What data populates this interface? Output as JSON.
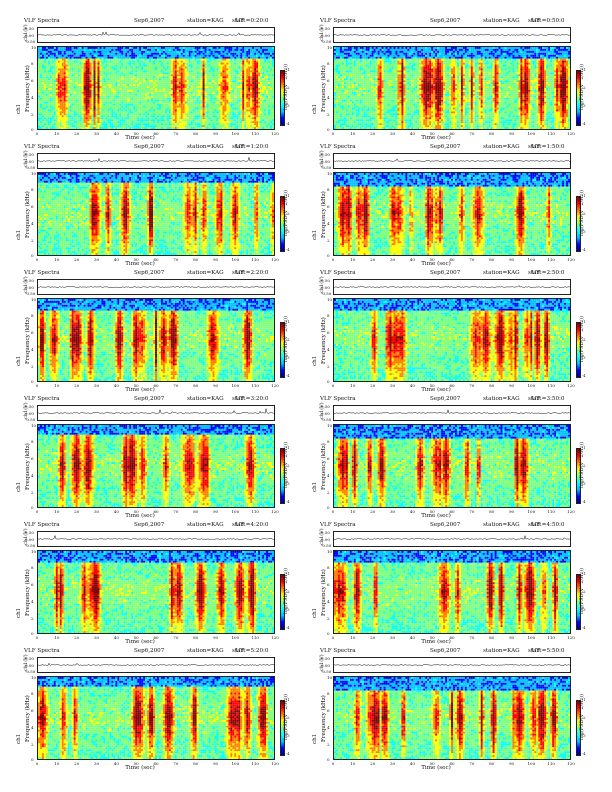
{
  "header": {
    "title": "VLF Spectra",
    "date": "Sep6,2007",
    "station": "station=KAG",
    "start": "start"
  },
  "labels": {
    "ts_label": "ch1(V)",
    "freq_label": "Frequency (kHz)",
    "ch_label": "ch1",
    "x_label": "Time (sec)",
    "cbar_label": "log(PSD(V^2/Hz))"
  },
  "ts_ticks": [
    "0.50",
    "0.00",
    "-0.50"
  ],
  "freq_ticks": [
    "10",
    "8",
    "6",
    "4",
    "2",
    "0"
  ],
  "time_ticks": [
    "0",
    "10",
    "20",
    "30",
    "40",
    "50",
    "60",
    "70",
    "80",
    "90",
    "100",
    "110",
    "120"
  ],
  "cbar_ticks": [
    "-1",
    "-2",
    "-3",
    "-4"
  ],
  "colormap": [
    "#00008b",
    "#0000ff",
    "#00bfff",
    "#00ffff",
    "#7fff7f",
    "#ffff00",
    "#ff8000",
    "#ff0000",
    "#800000"
  ],
  "panels": [
    {
      "ut": "UT =0:20:0"
    },
    {
      "ut": "UT =0:50:0"
    },
    {
      "ut": "UT =1:20:0"
    },
    {
      "ut": "UT =1:50:0"
    },
    {
      "ut": "UT =2:20:0"
    },
    {
      "ut": "UT =2:50:0"
    },
    {
      "ut": "UT =3:20:0"
    },
    {
      "ut": "UT =3:50:0"
    },
    {
      "ut": "UT =4:20:0"
    },
    {
      "ut": "UT =4:50:0"
    },
    {
      "ut": "UT =5:20:0"
    },
    {
      "ut": "UT =5:50:0"
    }
  ],
  "chart_data": {
    "type": "heatmap",
    "description_of_axes": "12 spectrogram panels, each with a ch1 voltage time series above",
    "x_axis": {
      "label": "Time (sec)",
      "range": [
        0,
        120
      ]
    },
    "y_axis": {
      "label": "Frequency (kHz)",
      "range": [
        0,
        10
      ]
    },
    "ts_axis": {
      "label": "ch1(V)",
      "range": [
        -0.5,
        0.5
      ]
    },
    "colorbar": {
      "label": "log(PSD(V^2/Hz))",
      "ticks": [
        -1,
        -2,
        -3,
        -4
      ]
    },
    "panels": [
      {
        "start_ut": "0:20:0",
        "date": "Sep6,2007",
        "station": "KAG"
      },
      {
        "start_ut": "0:50:0",
        "date": "Sep6,2007",
        "station": "KAG"
      },
      {
        "start_ut": "1:20:0",
        "date": "Sep6,2007",
        "station": "KAG"
      },
      {
        "start_ut": "1:50:0",
        "date": "Sep6,2007",
        "station": "KAG"
      },
      {
        "start_ut": "2:20:0",
        "date": "Sep6,2007",
        "station": "KAG"
      },
      {
        "start_ut": "2:50:0",
        "date": "Sep6,2007",
        "station": "KAG"
      },
      {
        "start_ut": "3:20:0",
        "date": "Sep6,2007",
        "station": "KAG"
      },
      {
        "start_ut": "3:50:0",
        "date": "Sep6,2007",
        "station": "KAG"
      },
      {
        "start_ut": "4:20:0",
        "date": "Sep6,2007",
        "station": "KAG"
      },
      {
        "start_ut": "4:50:0",
        "date": "Sep6,2007",
        "station": "KAG"
      },
      {
        "start_ut": "5:20:0",
        "date": "Sep6,2007",
        "station": "KAG"
      },
      {
        "start_ut": "5:50:0",
        "date": "Sep6,2007",
        "station": "KAG"
      }
    ]
  }
}
